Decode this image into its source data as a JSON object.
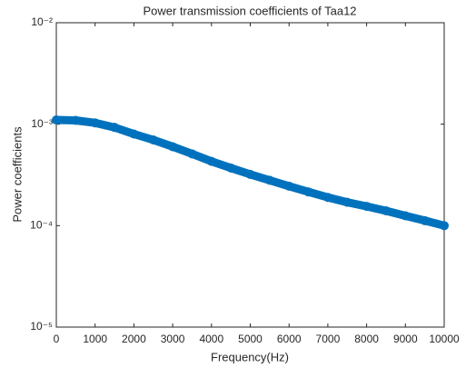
{
  "chart_data": {
    "type": "line",
    "title": "Power transmission coefficients of Taa12",
    "x_label": "Frequency(Hz)",
    "y_label": "Power coefficients",
    "x": [
      0,
      500,
      1000,
      1500,
      2000,
      2500,
      3000,
      3500,
      4000,
      4500,
      5000,
      5500,
      6000,
      6500,
      7000,
      7500,
      8000,
      8500,
      9000,
      9500,
      10000
    ],
    "series": [
      {
        "color": "#0072bd",
        "values": [
          0.0011,
          0.00109,
          0.00103,
          0.00093,
          0.0008,
          0.0007,
          0.0006,
          0.00051,
          0.00043,
          0.00037,
          0.00032,
          0.00028,
          0.000245,
          0.000215,
          0.00019,
          0.00017,
          0.000155,
          0.00014,
          0.000125,
          0.000112,
          0.0001
        ]
      }
    ],
    "xlim": [
      0,
      10000
    ],
    "xticks": [
      0,
      1000,
      2000,
      3000,
      4000,
      5000,
      6000,
      7000,
      8000,
      9000,
      10000
    ],
    "ylim": [
      1e-05,
      0.01
    ],
    "yticks": [
      {
        "value": 1e-05,
        "label": "10⁻⁵"
      },
      {
        "value": 0.0001,
        "label": "10⁻⁴"
      },
      {
        "value": 0.001,
        "label": "10⁻³"
      },
      {
        "value": 0.01,
        "label": "10⁻²"
      }
    ],
    "log_y": true
  }
}
